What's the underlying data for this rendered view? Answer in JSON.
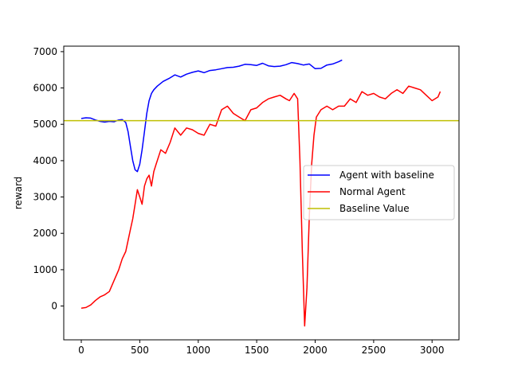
{
  "chart_data": {
    "type": "line",
    "title": "",
    "xlabel": "",
    "ylabel": "reward",
    "xlim": [
      -150,
      3230
    ],
    "ylim": [
      -930,
      7150
    ],
    "xticks": [
      0,
      500,
      1000,
      1500,
      2000,
      2500,
      3000
    ],
    "yticks": [
      0,
      1000,
      2000,
      3000,
      4000,
      5000,
      6000,
      7000
    ],
    "grid": false,
    "legend_position": "center-right",
    "series": [
      {
        "name": "Agent with baseline",
        "color": "#0000ff",
        "x": [
          0,
          40,
          80,
          120,
          160,
          200,
          240,
          280,
          320,
          350,
          380,
          400,
          420,
          440,
          460,
          480,
          500,
          520,
          540,
          560,
          580,
          600,
          620,
          650,
          700,
          750,
          800,
          850,
          900,
          950,
          1000,
          1050,
          1100,
          1150,
          1200,
          1250,
          1300,
          1350,
          1400,
          1450,
          1500,
          1550,
          1600,
          1650,
          1700,
          1750,
          1800,
          1850,
          1900,
          1950,
          2000,
          2050,
          2100,
          2150,
          2200,
          2230
        ],
        "y": [
          5160,
          5180,
          5170,
          5120,
          5080,
          5060,
          5080,
          5070,
          5120,
          5130,
          5050,
          4800,
          4400,
          4000,
          3750,
          3700,
          3900,
          4300,
          4800,
          5300,
          5650,
          5850,
          5950,
          6050,
          6180,
          6260,
          6360,
          6300,
          6380,
          6430,
          6470,
          6420,
          6480,
          6500,
          6530,
          6560,
          6570,
          6600,
          6650,
          6640,
          6620,
          6680,
          6610,
          6590,
          6600,
          6640,
          6700,
          6670,
          6630,
          6660,
          6530,
          6540,
          6630,
          6660,
          6720,
          6770
        ]
      },
      {
        "name": "Normal Agent",
        "color": "#ff0000",
        "x": [
          0,
          40,
          80,
          120,
          160,
          200,
          240,
          280,
          320,
          350,
          380,
          400,
          420,
          440,
          460,
          480,
          500,
          520,
          540,
          560,
          580,
          600,
          620,
          640,
          680,
          720,
          760,
          800,
          850,
          900,
          950,
          1000,
          1050,
          1100,
          1150,
          1200,
          1250,
          1300,
          1350,
          1400,
          1450,
          1500,
          1550,
          1600,
          1650,
          1700,
          1750,
          1780,
          1820,
          1850,
          1870,
          1890,
          1910,
          1930,
          1950,
          1970,
          1990,
          2010,
          2050,
          2100,
          2150,
          2200,
          2250,
          2300,
          2350,
          2400,
          2450,
          2500,
          2550,
          2600,
          2650,
          2700,
          2750,
          2800,
          2850,
          2900,
          2950,
          3000,
          3050,
          3070
        ],
        "y": [
          -60,
          -40,
          30,
          150,
          250,
          310,
          400,
          700,
          1000,
          1300,
          1500,
          1800,
          2100,
          2400,
          2800,
          3200,
          3000,
          2800,
          3300,
          3500,
          3600,
          3300,
          3700,
          3900,
          4300,
          4200,
          4500,
          4900,
          4700,
          4900,
          4850,
          4750,
          4700,
          5000,
          4950,
          5400,
          5500,
          5300,
          5200,
          5100,
          5400,
          5450,
          5600,
          5700,
          5750,
          5800,
          5700,
          5650,
          5850,
          5700,
          4000,
          1500,
          -550,
          500,
          2500,
          3900,
          4700,
          5200,
          5400,
          5500,
          5400,
          5500,
          5500,
          5700,
          5600,
          5900,
          5800,
          5850,
          5750,
          5700,
          5850,
          5950,
          5850,
          6050,
          6000,
          5950,
          5800,
          5650,
          5750,
          5900
        ]
      },
      {
        "name": "Baseline Value",
        "color": "#bfbf00",
        "hline": 5100
      }
    ]
  }
}
